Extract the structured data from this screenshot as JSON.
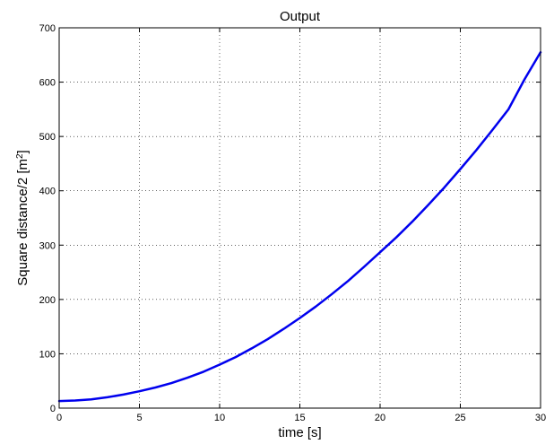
{
  "chart_data": {
    "type": "line",
    "title": "Output",
    "xlabel": "time [s]",
    "ylabel": "Square distance/2  [m",
    "ylabel_superscript": "2",
    "ylabel_suffix": "]",
    "xlim": [
      0,
      30
    ],
    "ylim": [
      0,
      700
    ],
    "xticks": [
      "0",
      "5",
      "10",
      "15",
      "20",
      "25",
      "30"
    ],
    "yticks": [
      "0",
      "100",
      "200",
      "300",
      "400",
      "500",
      "600",
      "700"
    ],
    "grid": true,
    "series": [
      {
        "color": "#0000ee",
        "x": [
          0,
          1,
          2,
          3,
          4,
          5,
          6,
          7,
          8,
          9,
          10,
          11,
          12,
          13,
          14,
          15,
          16,
          17,
          18,
          19,
          20,
          21,
          22,
          23,
          24,
          25,
          26,
          27,
          28,
          29,
          30
        ],
        "y": [
          13,
          14,
          16,
          20,
          25,
          31,
          38,
          46,
          56,
          67,
          80,
          94,
          110,
          127,
          146,
          166,
          187,
          210,
          234,
          260,
          287,
          314,
          343,
          374,
          406,
          440,
          475,
          512,
          550,
          605,
          655
        ]
      }
    ]
  }
}
